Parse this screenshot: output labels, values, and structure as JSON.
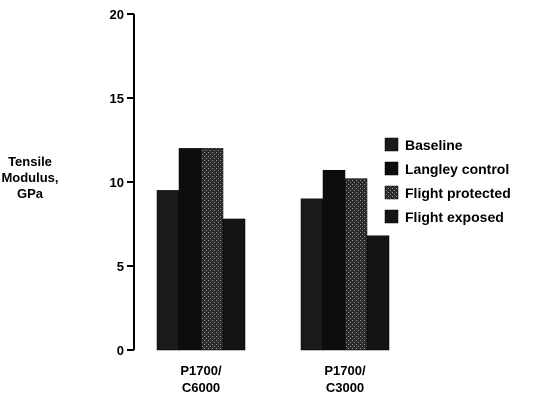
{
  "chart_data": {
    "type": "bar",
    "title": "",
    "xlabel": "",
    "ylabel": [
      "Tensile",
      "Modulus,",
      "GPa"
    ],
    "ylim": [
      0,
      20
    ],
    "yticks": [
      0,
      5,
      10,
      15,
      20
    ],
    "categories": [
      [
        "P1700/",
        "C6000"
      ],
      [
        "P1700/",
        "C3000"
      ]
    ],
    "series": [
      {
        "name": "Baseline",
        "values": [
          9.5,
          9.0
        ],
        "color": "#1a1a1a",
        "pattern": "solid"
      },
      {
        "name": "Langley control",
        "values": [
          12.0,
          10.7
        ],
        "color": "#0d0d0d",
        "pattern": "solid"
      },
      {
        "name": "Flight protected",
        "values": [
          12.0,
          10.2
        ],
        "color": "#3a3a3a",
        "pattern": "stipple"
      },
      {
        "name": "Flight exposed",
        "values": [
          7.8,
          6.8
        ],
        "color": "#141414",
        "pattern": "solid"
      }
    ],
    "grid": false,
    "legend": "right"
  }
}
